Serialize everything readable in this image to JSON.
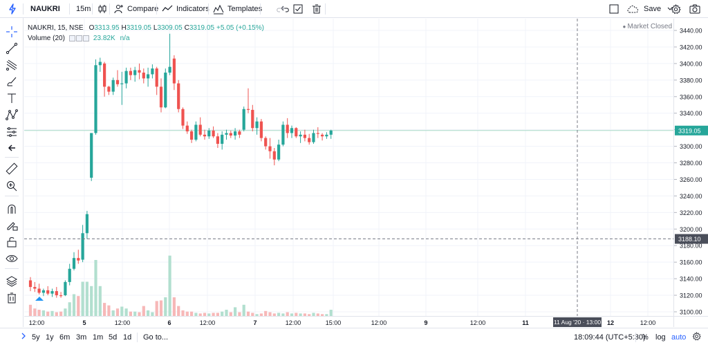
{
  "toolbar": {
    "symbol": "NAUKRI",
    "interval": "15m",
    "compare_label": "Compare",
    "indicators_label": "Indicators",
    "templates_label": "Templates",
    "save_label": "Save"
  },
  "legend": {
    "title": "NAUKRI, 15, NSE",
    "o_label": "O",
    "o_value": "3313.95",
    "h_label": "H",
    "h_value": "3319.05",
    "l_label": "L",
    "l_value": "3309.05",
    "c_label": "C",
    "c_value": "3319.05",
    "change": "+5.05 (+0.15%)",
    "volume_label": "Volume (20)",
    "volume_value": "23.82K",
    "volume_ma": "n/a",
    "market_status": "Market Closed"
  },
  "colors": {
    "up": "#26a69a",
    "down": "#ef5350",
    "up_volume": "#b2dfcf",
    "down_volume": "#f7b8b8",
    "accent": "#2962ff",
    "last_price_line": "#a7d9c7",
    "crosshair_label_bg": "#4a4e5a"
  },
  "crosshair": {
    "price": "3188.10",
    "time": "11 Aug '20 · 13:00"
  },
  "last_price_tag": "3319.05",
  "chart_data": {
    "type": "candlestick",
    "symbol": "NAUKRI",
    "exchange": "NSE",
    "interval": "15",
    "price_range": [
      3090,
      3450
    ],
    "price_ticks": [
      "3440.00",
      "3420.00",
      "3400.00",
      "3380.00",
      "3360.00",
      "3340.00",
      "3320.00",
      "3300.00",
      "3280.00",
      "3260.00",
      "3240.00",
      "3220.00",
      "3200.00",
      "3180.00",
      "3160.00",
      "3140.00",
      "3120.00",
      "3100.00"
    ],
    "time_ticks": [
      "12:00",
      "5",
      "12:00",
      "6",
      "12:00",
      "7",
      "12:00",
      "15:00",
      "12:00",
      "9",
      "12:00",
      "11",
      "12",
      "12:00"
    ],
    "bold_time_ticks": [
      "5",
      "6",
      "7",
      "9",
      "11",
      "12"
    ],
    "ohlc": [
      [
        3138,
        3142,
        3125,
        3130
      ],
      [
        3130,
        3136,
        3124,
        3128
      ],
      [
        3128,
        3134,
        3121,
        3123
      ],
      [
        3123,
        3128,
        3119,
        3126
      ],
      [
        3126,
        3131,
        3120,
        3122
      ],
      [
        3122,
        3128,
        3118,
        3125
      ],
      [
        3125,
        3130,
        3117,
        3120
      ],
      [
        3120,
        3124,
        3117,
        3119
      ],
      [
        3120,
        3138,
        3119,
        3136
      ],
      [
        3136,
        3158,
        3132,
        3152
      ],
      [
        3152,
        3172,
        3150,
        3165
      ],
      [
        3165,
        3175,
        3158,
        3162
      ],
      [
        3163,
        3205,
        3160,
        3195
      ],
      [
        3195,
        3222,
        3188,
        3218
      ],
      [
        3262,
        3316,
        3258,
        3316
      ],
      [
        3316,
        3405,
        3314,
        3398
      ],
      [
        3398,
        3407,
        3390,
        3402
      ],
      [
        3400,
        3402,
        3360,
        3372
      ],
      [
        3372,
        3373,
        3362,
        3366
      ],
      [
        3366,
        3383,
        3362,
        3380
      ],
      [
        3380,
        3392,
        3372,
        3375
      ],
      [
        3375,
        3390,
        3350,
        3376
      ],
      [
        3376,
        3395,
        3370,
        3391
      ],
      [
        3391,
        3395,
        3380,
        3386
      ],
      [
        3386,
        3396,
        3378,
        3392
      ],
      [
        3392,
        3400,
        3381,
        3389
      ],
      [
        3389,
        3394,
        3376,
        3382
      ],
      [
        3382,
        3395,
        3372,
        3387
      ],
      [
        3387,
        3399,
        3382,
        3394
      ],
      [
        3394,
        3396,
        3362,
        3372
      ],
      [
        3372,
        3382,
        3341,
        3347
      ],
      [
        3347,
        3394,
        3346,
        3389
      ],
      [
        3389,
        3436,
        3386,
        3396
      ],
      [
        3406,
        3410,
        3368,
        3376
      ],
      [
        3376,
        3380,
        3341,
        3345
      ],
      [
        3345,
        3347,
        3321,
        3325
      ],
      [
        3325,
        3330,
        3315,
        3318
      ],
      [
        3318,
        3320,
        3304,
        3308
      ],
      [
        3308,
        3330,
        3306,
        3326
      ],
      [
        3326,
        3335,
        3312,
        3314
      ],
      [
        3314,
        3320,
        3308,
        3312
      ],
      [
        3312,
        3322,
        3309,
        3319
      ],
      [
        3319,
        3324,
        3310,
        3312
      ],
      [
        3312,
        3316,
        3298,
        3303
      ],
      [
        3303,
        3318,
        3296,
        3314
      ],
      [
        3314,
        3320,
        3308,
        3316
      ],
      [
        3316,
        3319,
        3310,
        3313
      ],
      [
        3313,
        3322,
        3308,
        3318
      ],
      [
        3318,
        3320,
        3310,
        3314
      ],
      [
        3320,
        3348,
        3318,
        3345
      ],
      [
        3345,
        3370,
        3340,
        3344
      ],
      [
        3344,
        3350,
        3318,
        3322
      ],
      [
        3322,
        3335,
        3314,
        3330
      ],
      [
        3330,
        3333,
        3306,
        3310
      ],
      [
        3310,
        3312,
        3296,
        3300
      ],
      [
        3300,
        3310,
        3285,
        3294
      ],
      [
        3294,
        3298,
        3277,
        3284
      ],
      [
        3284,
        3308,
        3282,
        3302
      ],
      [
        3302,
        3330,
        3300,
        3326
      ],
      [
        3326,
        3334,
        3310,
        3316
      ],
      [
        3316,
        3325,
        3310,
        3322
      ],
      [
        3322,
        3323,
        3310,
        3312
      ],
      [
        3312,
        3318,
        3304,
        3314
      ],
      [
        3314,
        3320,
        3306,
        3310
      ],
      [
        3310,
        3315,
        3302,
        3305
      ],
      [
        3305,
        3320,
        3303,
        3316
      ],
      [
        3316,
        3323,
        3310,
        3315
      ],
      [
        3314,
        3316,
        3307,
        3312
      ],
      [
        3312,
        3317,
        3309,
        3314
      ],
      [
        3314,
        3320,
        3309,
        3319
      ]
    ],
    "volume_relative": [
      0.18,
      0.12,
      0.1,
      0.09,
      0.07,
      0.08,
      0.06,
      0.07,
      0.12,
      0.22,
      0.35,
      0.32,
      0.55,
      0.55,
      0.48,
      0.9,
      0.48,
      0.21,
      0.17,
      0.09,
      0.12,
      0.15,
      0.12,
      0.07,
      0.07,
      0.06,
      0.16,
      0.09,
      0.06,
      0.24,
      0.25,
      0.3,
      0.97,
      0.3,
      0.16,
      0.09,
      0.07,
      0.07,
      0.05,
      0.04,
      0.05,
      0.04,
      0.05,
      0.05,
      0.07,
      0.1,
      0.06,
      0.14,
      0.06,
      0.18,
      0.07,
      0.05,
      0.03,
      0.04,
      0.08,
      0.06,
      0.04,
      0.05,
      0.04,
      0.06,
      0.04,
      0.05,
      0.04,
      0.04,
      0.03,
      0.05,
      0.04,
      0.03,
      0.03,
      0.1
    ]
  },
  "ranges": [
    "5y",
    "1y",
    "6m",
    "3m",
    "1m",
    "5d",
    "1d"
  ],
  "goto_label": "Go to...",
  "clock": "18:09:44 (UTC+5:30)",
  "scale_options": {
    "percent": "%",
    "log": "log",
    "auto": "auto"
  }
}
